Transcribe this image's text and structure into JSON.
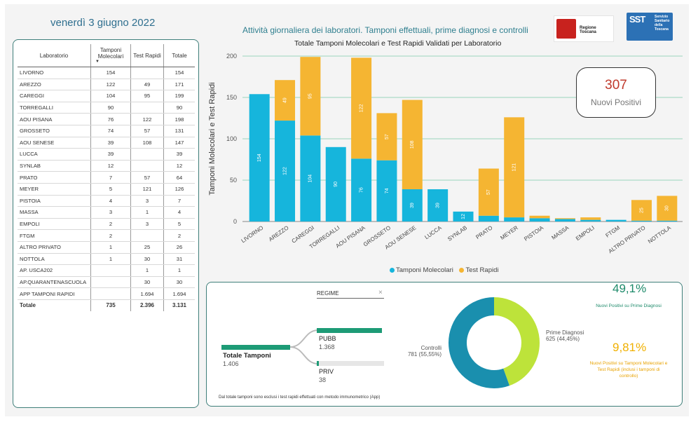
{
  "header": {
    "date": "venerdì 3 giugno 2022",
    "title": "Attività giornaliera dei laboratori. Tamponi effettuali, prime diagnosi e controlli",
    "logo_rt": "Regione Toscana",
    "logo_sst_short": "SST",
    "logo_sst_text": "Servizio Sanitario della Toscana"
  },
  "table": {
    "headers": [
      "Laboratorio",
      "Tamponi Molecolari",
      "Test Rapidi",
      "Totale"
    ],
    "rows": [
      [
        "LIVORNO",
        "154",
        "",
        "154"
      ],
      [
        "AREZZO",
        "122",
        "49",
        "171"
      ],
      [
        "CAREGGI",
        "104",
        "95",
        "199"
      ],
      [
        "TORREGALLI",
        "90",
        "",
        "90"
      ],
      [
        "AOU PISANA",
        "76",
        "122",
        "198"
      ],
      [
        "GROSSETO",
        "74",
        "57",
        "131"
      ],
      [
        "AOU SENESE",
        "39",
        "108",
        "147"
      ],
      [
        "LUCCA",
        "39",
        "",
        "39"
      ],
      [
        "SYNLAB",
        "12",
        "",
        "12"
      ],
      [
        "PRATO",
        "7",
        "57",
        "64"
      ],
      [
        "MEYER",
        "5",
        "121",
        "126"
      ],
      [
        "PISTOIA",
        "4",
        "3",
        "7"
      ],
      [
        "MASSA",
        "3",
        "1",
        "4"
      ],
      [
        "EMPOLI",
        "2",
        "3",
        "5"
      ],
      [
        "FTGM",
        "2",
        "",
        "2"
      ],
      [
        "ALTRO PRIVATO",
        "1",
        "25",
        "26"
      ],
      [
        "NOTTOLA",
        "1",
        "30",
        "31"
      ],
      [
        "AP. USCA202",
        "",
        "1",
        "1"
      ],
      [
        "AP.QUARANTENASCUOLA",
        "",
        "30",
        "30"
      ],
      [
        "APP TAMPONI RAPIDI",
        "",
        "1.694",
        "1.694"
      ]
    ],
    "total": [
      "Totale",
      "735",
      "2.396",
      "3.131"
    ]
  },
  "chart_data": [
    {
      "type": "bar",
      "title": "Totale Tamponi Molecolari e Test Rapidi Validati per Laboratorio",
      "ylabel": "Tamponi Molecolari e Test Rapidi",
      "xlabel": "",
      "stacked": true,
      "ylim": [
        0,
        200
      ],
      "yticks": [
        0,
        50,
        100,
        150,
        200
      ],
      "categories": [
        "LIVORNO",
        "AREZZO",
        "CAREGGI",
        "TORREGALLI",
        "AOU PISANA",
        "GROSSETO",
        "AOU SENESE",
        "LUCCA",
        "SYNLAB",
        "PRATO",
        "MEYER",
        "PISTOIA",
        "MASSA",
        "EMPOLI",
        "FTGM",
        "ALTRO PRIVATO",
        "NOTTOLA"
      ],
      "series": [
        {
          "name": "Tamponi Molecolari",
          "color": "#16b5dc",
          "values": [
            154,
            122,
            104,
            90,
            76,
            74,
            39,
            39,
            12,
            7,
            5,
            4,
            3,
            2,
            2,
            1,
            1
          ]
        },
        {
          "name": "Test Rapidi",
          "color": "#f5b532",
          "values": [
            0,
            49,
            95,
            0,
            122,
            57,
            108,
            0,
            0,
            57,
            121,
            3,
            1,
            3,
            0,
            25,
            30
          ]
        }
      ],
      "legend": "bottom",
      "grid": true
    },
    {
      "type": "pie",
      "slices": [
        {
          "label": "Prime Diagnosi",
          "value": 625,
          "display": "625 (44,45%)",
          "color": "#bde33a"
        },
        {
          "label": "Controlli",
          "value": 781,
          "display": "781 (55,55%)",
          "color": "#1a8fae"
        }
      ]
    }
  ],
  "kpi": {
    "value": "307",
    "label": "Nuovi Positivi"
  },
  "regime": {
    "filter_label": "REGIME",
    "close": "×",
    "root_label": "Totale Tamponi",
    "root_value": "1.406",
    "pubb_label": "PUBB",
    "pubb_value": "1.368",
    "pubb_fraction": 0.973,
    "priv_label": "PRIV",
    "priv_value": "38",
    "priv_fraction": 0.027
  },
  "note": "Dal totale tamponi sono esclusi i test rapidi effettuati con metodo immunometrico (App)",
  "stats": {
    "pct1": "49,1%",
    "pct1_label": "Nuovi Positivi su Prime Diagnosi",
    "pct2": "9,81%",
    "pct2_label": "Nuovi Positivi su Tamponi Molecolari e Test Rapidi (inclusi i tamponi di controllo)"
  },
  "colors": {
    "teal": "#1d9b76",
    "cyan": "#16b5dc",
    "amber": "#f5b532"
  }
}
